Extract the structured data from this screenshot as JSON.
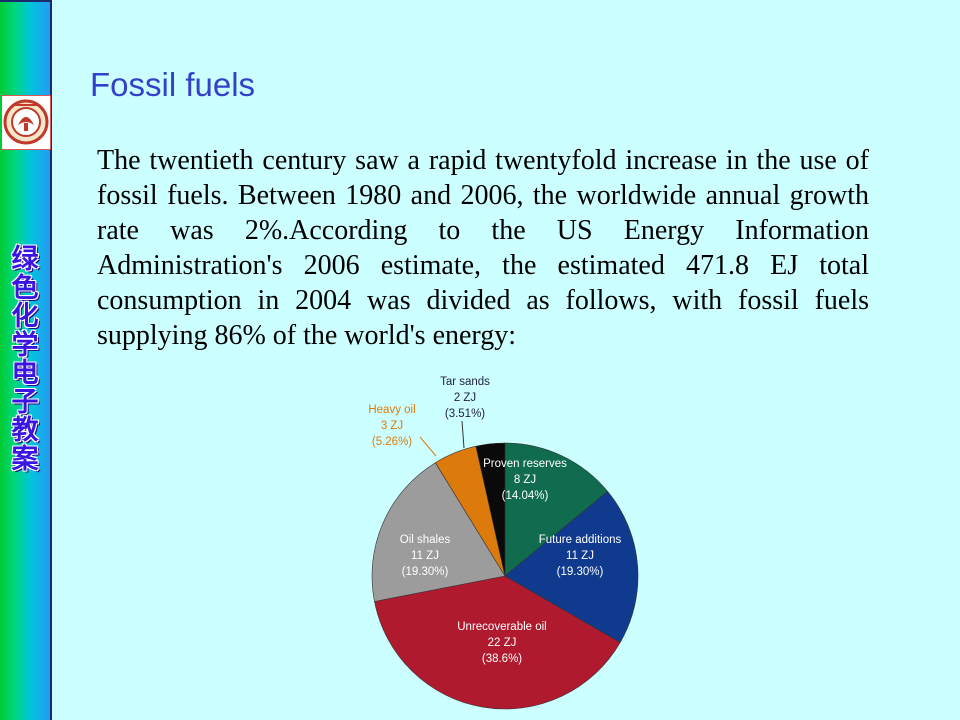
{
  "sidebar": {
    "vertical_title": [
      "绿",
      "色",
      "化",
      "学",
      "电",
      "子",
      "教",
      "案"
    ]
  },
  "slide": {
    "title": "Fossil fuels",
    "body": "The twentieth century saw a rapid twentyfold increase in the use of fossil fuels. Between 1980 and 2006, the worldwide annual growth rate was 2%.According to the US Energy Information Administration's 2006 estimate, the estimated 471.8 EJ total consumption in 2004 was divided as follows, with fossil fuels supplying 86% of the world's energy:"
  },
  "chart_data": {
    "type": "pie",
    "unit": "ZJ",
    "slices": [
      {
        "name": "Proven reserves",
        "value": 8,
        "value_label": "8 ZJ",
        "percent_label": "(14.04%)",
        "color": "#106b4f"
      },
      {
        "name": "Future additions",
        "value": 11,
        "value_label": "11 ZJ",
        "percent_label": "(19.30%)",
        "color": "#0f3a8e"
      },
      {
        "name": "Unrecoverable oil",
        "value": 22,
        "value_label": "22 ZJ",
        "percent_label": "(38.6%)",
        "color": "#b01a2e"
      },
      {
        "name": "Oil shales",
        "value": 11,
        "value_label": "11 ZJ",
        "percent_label": "(19.30%)",
        "color": "#9c9c9c"
      },
      {
        "name": "Heavy oil",
        "value": 3,
        "value_label": "3 ZJ",
        "percent_label": "(5.26%)",
        "color": "#dd7a0c"
      },
      {
        "name": "Tar sands",
        "value": 2,
        "value_label": "2 ZJ",
        "percent_label": "(3.51%)",
        "color": "#0a0a0a"
      }
    ]
  }
}
